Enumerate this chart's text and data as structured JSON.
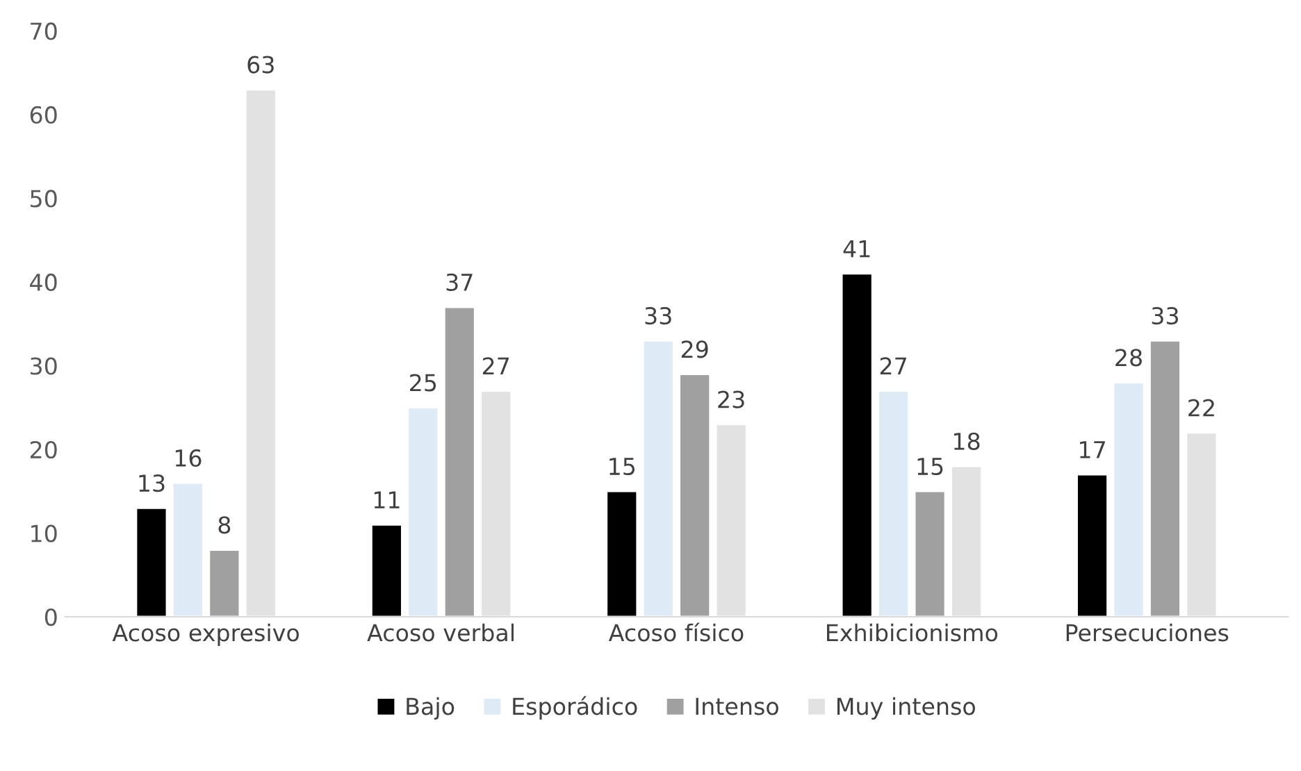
{
  "chart_data": {
    "type": "bar",
    "categories": [
      "Acoso expresivo",
      "Acoso verbal",
      "Acoso físico",
      "Exhibicionismo",
      "Persecuciones"
    ],
    "series": [
      {
        "name": "Bajo",
        "color": "#000000",
        "values": [
          13,
          11,
          15,
          41,
          17
        ]
      },
      {
        "name": "Esporádico",
        "color": "#deebf7",
        "values": [
          16,
          25,
          33,
          27,
          28
        ]
      },
      {
        "name": "Intenso",
        "color": "#a0a0a0",
        "values": [
          8,
          37,
          29,
          15,
          33
        ]
      },
      {
        "name": "Muy intenso",
        "color": "#e2e2e2",
        "values": [
          63,
          27,
          23,
          18,
          22
        ]
      }
    ],
    "ylim": [
      0,
      70
    ],
    "yticks": [
      0,
      10,
      20,
      30,
      40,
      50,
      60,
      70
    ],
    "data_labels": true,
    "legend": "bottom",
    "grid": false
  }
}
